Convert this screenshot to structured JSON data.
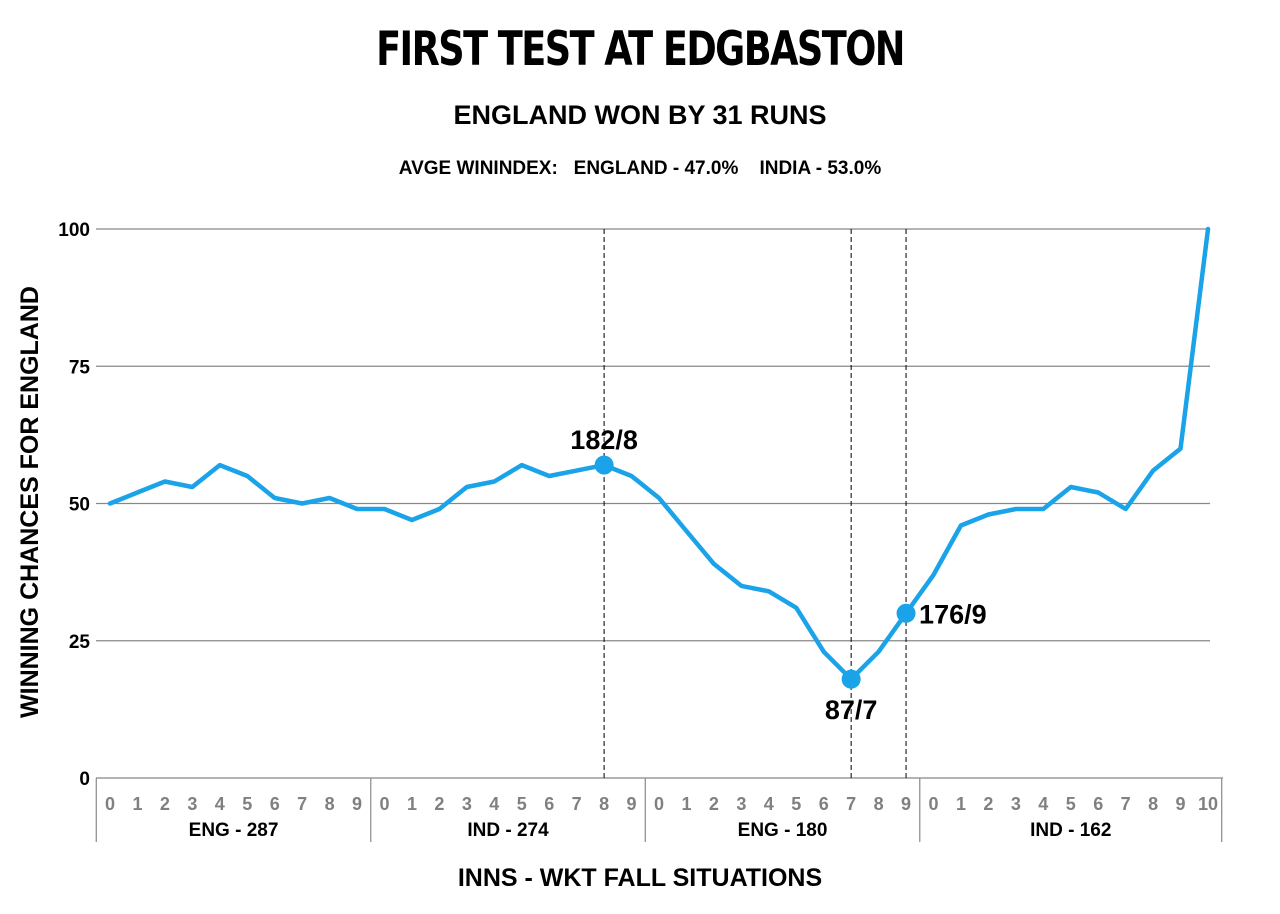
{
  "title": "FIRST TEST AT EDGBASTON",
  "subtitle": "ENGLAND WON BY 31 RUNS",
  "avg_line": "AVGE WININDEX:   ENGLAND - 47.0%    INDIA - 53.0%",
  "colors": {
    "line": "#1aa3e8",
    "grid": "#888888",
    "tick_gray": "#808080"
  },
  "chart_data": {
    "type": "line",
    "title": "FIRST TEST AT EDGBASTON",
    "subtitle": "ENGLAND WON BY 31 RUNS",
    "xlabel": "INNS - WKT FALL SITUATIONS",
    "ylabel": "WINNING CHANCES FOR ENGLAND",
    "ylim": [
      0,
      100
    ],
    "yticks": [
      0,
      25,
      50,
      75,
      100
    ],
    "grid": true,
    "innings": [
      {
        "label": "ENG - 287",
        "ticks": [
          "0",
          "1",
          "2",
          "3",
          "4",
          "5",
          "6",
          "7",
          "8",
          "9"
        ]
      },
      {
        "label": "IND - 274",
        "ticks": [
          "0",
          "1",
          "2",
          "3",
          "4",
          "5",
          "6",
          "7",
          "8",
          "9"
        ]
      },
      {
        "label": "ENG - 180",
        "ticks": [
          "0",
          "1",
          "2",
          "3",
          "4",
          "5",
          "6",
          "7",
          "8",
          "9"
        ]
      },
      {
        "label": "IND - 162",
        "ticks": [
          "0",
          "1",
          "2",
          "3",
          "4",
          "5",
          "6",
          "7",
          "8",
          "9",
          "10"
        ]
      }
    ],
    "series": [
      {
        "values": [
          50,
          52,
          54,
          53,
          57,
          55,
          51,
          50,
          51,
          49,
          49,
          47,
          49,
          53,
          54,
          57,
          55,
          56,
          57,
          55,
          51,
          45,
          39,
          35,
          34,
          31,
          23,
          18,
          23,
          30,
          37,
          46,
          48,
          49,
          49,
          53,
          52,
          49,
          56,
          60,
          100
        ]
      }
    ],
    "annotations": [
      {
        "innings": "IND - 274",
        "wicket": 8,
        "value": 57,
        "text": "182/8",
        "position": "above"
      },
      {
        "innings": "ENG - 180",
        "wicket": 7,
        "value": 18,
        "text": "87/7",
        "position": "below"
      },
      {
        "innings": "ENG - 180",
        "wicket": 9,
        "value": 30,
        "text": "176/9",
        "position": "right"
      }
    ]
  }
}
